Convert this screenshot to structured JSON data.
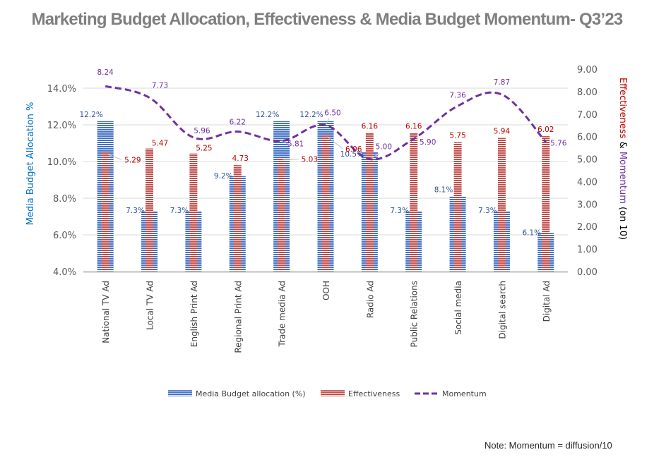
{
  "title": "Marketing Budget Allocation, Effectiveness & Media Budget Momentum- Q3’23",
  "note": "Note: Momentum  = diffusion/10",
  "colors": {
    "allocation": "#4472c4",
    "effectiveness": "#c0504d",
    "momentum": "#7030a0",
    "allocation_label": "#2f5597",
    "effectiveness_label": "#c00000",
    "gridline": "#d9d9d9",
    "axis_line": "#bfbfbf",
    "left_axis_title": "#0070c0",
    "title": "#7f7f7f"
  },
  "chart_data": {
    "type": "bar",
    "title": "Marketing Budget Allocation, Effectiveness & Media Budget Momentum- Q3’23",
    "categories": [
      "National TV Ad",
      "Local TV Ad",
      "English Print Ad",
      "Regional Print Ad",
      "Trade media Ad",
      "OOH",
      "Radio Ad",
      "Public Relations",
      "Social media",
      "Digital search",
      "Digital Ad"
    ],
    "series": [
      {
        "name": "Media Budget allocation (%)",
        "type": "bar",
        "axis": "left",
        "values": [
          12.2,
          7.3,
          7.3,
          9.2,
          12.2,
          12.2,
          10.5,
          7.3,
          8.1,
          7.3,
          6.1
        ],
        "labels": [
          "12.2%",
          "7.3%",
          "7.3%",
          "9.2%",
          "12.2%",
          "12.2%",
          "10.5%",
          "7.3%",
          "8.1%",
          "7.3%",
          "6.1%"
        ]
      },
      {
        "name": "Effectiveness",
        "type": "bar",
        "axis": "right",
        "values": [
          5.29,
          5.47,
          5.25,
          4.73,
          5.03,
          6.06,
          6.16,
          6.16,
          5.75,
          5.94,
          6.02
        ],
        "labels": [
          "5.29",
          "5.47",
          "5.25",
          "4.73",
          "5.03",
          "6.06",
          "6.16",
          "6.16",
          "5.75",
          "5.94",
          "6.02"
        ]
      },
      {
        "name": "Momentum",
        "type": "line",
        "style": "dashed",
        "axis": "right",
        "values": [
          8.24,
          7.73,
          5.96,
          6.22,
          5.81,
          6.5,
          5.0,
          5.9,
          7.36,
          7.87,
          5.76
        ],
        "labels": [
          "8.24",
          "7.73",
          "5.96",
          "6.22",
          "5.81",
          "6.50",
          "5.00",
          "5.90",
          "7.36",
          "7.87",
          "5.76"
        ]
      }
    ],
    "left_axis": {
      "title": "Media Budget Allocation %",
      "ylim": [
        4.0,
        14.0
      ],
      "ticks": [
        "4.0%",
        "6.0%",
        "8.0%",
        "10.0%",
        "12.0%",
        "14.0%"
      ],
      "tick_values": [
        4,
        6,
        8,
        10,
        12,
        14
      ]
    },
    "right_axis": {
      "title_parts": [
        "Effectiveness",
        " & ",
        "Momentum",
        " (on 10)"
      ],
      "ylim": [
        0,
        9
      ],
      "ticks": [
        "0.00",
        "1.00",
        "2.00",
        "3.00",
        "4.00",
        "5.00",
        "6.00",
        "7.00",
        "8.00",
        "9.00"
      ],
      "tick_values": [
        0,
        1,
        2,
        3,
        4,
        5,
        6,
        7,
        8,
        9
      ]
    },
    "grid": true,
    "legend": {
      "position": "bottom",
      "entries": [
        "Media Budget allocation (%)",
        "Effectiveness",
        "Momentum"
      ]
    }
  }
}
